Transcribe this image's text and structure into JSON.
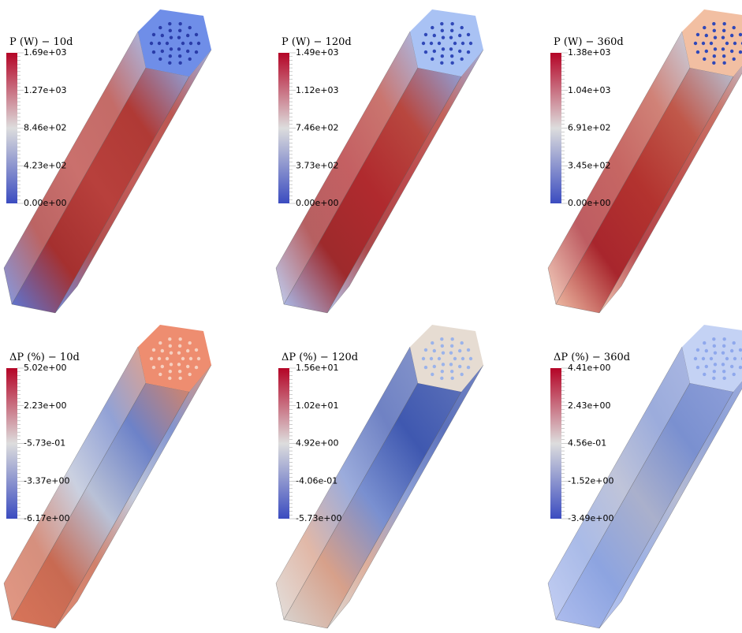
{
  "panels": [
    {
      "title": "P (W) − 10d",
      "ticks": [
        "1.69e+03",
        "1.27e+03",
        "8.46e+02",
        "4.23e+02",
        "0.00e+00"
      ]
    },
    {
      "title": "P (W) − 120d",
      "ticks": [
        "1.49e+03",
        "1.12e+03",
        "7.46e+02",
        "3.73e+02",
        "0.00e+00"
      ]
    },
    {
      "title": "P (W) − 360d",
      "ticks": [
        "1.38e+03",
        "1.04e+03",
        "6.91e+02",
        "3.45e+02",
        "0.00e+00"
      ]
    },
    {
      "title": "ΔP (%) − 10d",
      "ticks": [
        "5.02e+00",
        "2.23e+00",
        "-5.73e-01",
        "-3.37e+00",
        "-6.17e+00"
      ]
    },
    {
      "title": "ΔP (%) − 120d",
      "ticks": [
        "1.56e+01",
        "1.02e+01",
        "4.92e+00",
        "-4.06e-01",
        "-5.73e+00"
      ]
    },
    {
      "title": "ΔP (%) − 360d",
      "ticks": [
        "4.41e+00",
        "2.43e+00",
        "4.56e-01",
        "-1.52e+00",
        "-3.49e+00"
      ]
    }
  ]
}
